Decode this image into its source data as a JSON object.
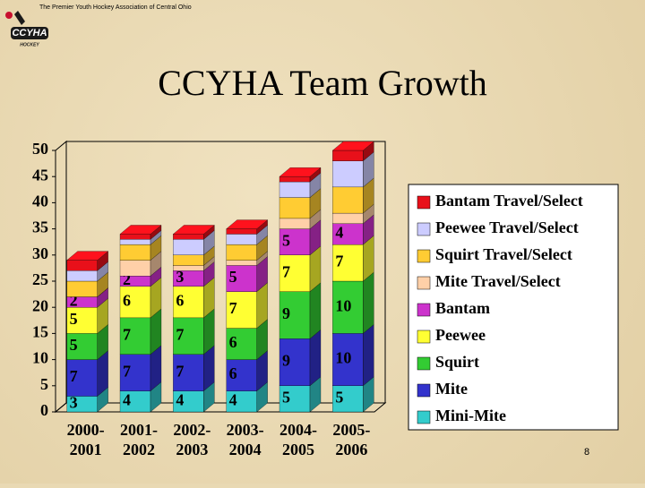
{
  "header": {
    "tagline": "The Premier Youth Hockey Association of Central Ohio",
    "logo": "CCYHA",
    "logo_sub": "HOCKEY"
  },
  "page_number": "8",
  "chart_data": {
    "type": "bar",
    "stacked": true,
    "title": "CCYHA Team Growth",
    "categories": [
      [
        "2000-",
        "2001"
      ],
      [
        "2001-",
        "2002"
      ],
      [
        "2002-",
        "2003"
      ],
      [
        "2003-",
        "2004"
      ],
      [
        "2004-",
        "2005"
      ],
      [
        "2005-",
        "2006"
      ]
    ],
    "ylim": [
      0,
      50
    ],
    "yticks": [
      0,
      5,
      10,
      15,
      20,
      25,
      30,
      35,
      40,
      45,
      50
    ],
    "series": [
      {
        "name": "Mini-Mite",
        "color": "#33cccc",
        "values": [
          3,
          4,
          4,
          4,
          5,
          5
        ],
        "labeled": true
      },
      {
        "name": "Mite",
        "color": "#3333cc",
        "values": [
          7,
          7,
          7,
          6,
          9,
          10
        ],
        "labeled": true
      },
      {
        "name": "Squirt",
        "color": "#33cc33",
        "values": [
          5,
          7,
          7,
          6,
          9,
          10
        ],
        "labeled": true
      },
      {
        "name": "Peewee",
        "color": "#ffff33",
        "values": [
          5,
          6,
          6,
          7,
          7,
          7
        ],
        "labeled": true
      },
      {
        "name": "Bantam",
        "color": "#cc33cc",
        "values": [
          2,
          2,
          3,
          5,
          5,
          4
        ],
        "labeled": true
      },
      {
        "name": "Mite Travel/Select",
        "color": "#ffd0a8",
        "values": [
          0,
          3,
          1,
          1,
          2,
          2
        ],
        "labeled": false
      },
      {
        "name": "Squirt Travel/Select",
        "color": "#ffcc33",
        "values": [
          3,
          3,
          2,
          3,
          4,
          5
        ],
        "labeled": false
      },
      {
        "name": "Peewee Travel/Select",
        "color": "#ccccff",
        "values": [
          2,
          1,
          3,
          2,
          3,
          5
        ],
        "labeled": false
      },
      {
        "name": "Bantam Travel/Select",
        "color": "#e8101a",
        "values": [
          2,
          1,
          1,
          1,
          1,
          2
        ],
        "labeled": false
      }
    ]
  }
}
